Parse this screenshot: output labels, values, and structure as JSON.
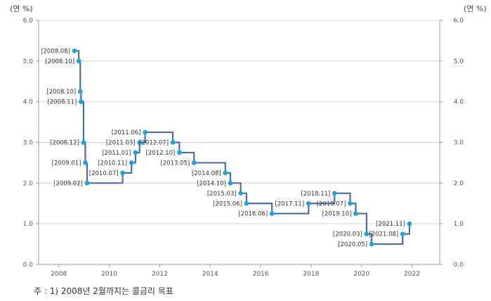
{
  "chart_data": {
    "type": "line",
    "step": true,
    "left_unit": "(연 %)",
    "right_unit": "(연 %)",
    "ylim": [
      0,
      6
    ],
    "y_ticks": [
      "0.0",
      "1.0",
      "2.0",
      "3.0",
      "4.0",
      "5.0",
      "6.0"
    ],
    "xlim": [
      2007.2,
      2023.1
    ],
    "x_ticks": [
      "2008",
      "2010",
      "2012",
      "2014",
      "2016",
      "2018",
      "2020",
      "2022"
    ],
    "grid": "horizontal",
    "line_color": "#4a6fa5",
    "marker_color": "#1aa3dc",
    "points": [
      {
        "label": "[2008.08]",
        "x": 2008.62,
        "y": 5.25,
        "side": "left"
      },
      {
        "label": "[2008.10]",
        "x": 2008.79,
        "y": 5.0,
        "side": "left"
      },
      {
        "label": "[2008.10]",
        "x": 2008.85,
        "y": 4.25,
        "side": "left"
      },
      {
        "label": "[2008.11]",
        "x": 2008.88,
        "y": 4.0,
        "side": "left"
      },
      {
        "label": "[2008.12]",
        "x": 2008.98,
        "y": 3.0,
        "side": "left"
      },
      {
        "label": "[2009.01]",
        "x": 2009.05,
        "y": 2.5,
        "side": "left"
      },
      {
        "label": "[2009.02]",
        "x": 2009.12,
        "y": 2.0,
        "side": "left"
      },
      {
        "label": "[2010.07]",
        "x": 2010.53,
        "y": 2.25,
        "side": "left"
      },
      {
        "label": "[2010.11]",
        "x": 2010.88,
        "y": 2.5,
        "side": "left"
      },
      {
        "label": "[2011.01]",
        "x": 2011.04,
        "y": 2.75,
        "side": "left"
      },
      {
        "label": "[2011.03]",
        "x": 2011.2,
        "y": 3.0,
        "side": "left"
      },
      {
        "label": "[2011.06]",
        "x": 2011.42,
        "y": 3.25,
        "side": "left"
      },
      {
        "label": "[2012.07]",
        "x": 2012.52,
        "y": 3.0,
        "side": "left"
      },
      {
        "label": "[2012.10]",
        "x": 2012.78,
        "y": 2.75,
        "side": "left"
      },
      {
        "label": "[2013.05]",
        "x": 2013.36,
        "y": 2.5,
        "side": "left"
      },
      {
        "label": "[2014.08]",
        "x": 2014.6,
        "y": 2.25,
        "side": "left"
      },
      {
        "label": "[2014.10]",
        "x": 2014.8,
        "y": 2.0,
        "side": "left"
      },
      {
        "label": "[2015.03]",
        "x": 2015.21,
        "y": 1.75,
        "side": "left"
      },
      {
        "label": "[2015.06]",
        "x": 2015.44,
        "y": 1.5,
        "side": "left"
      },
      {
        "label": "[2016.06]",
        "x": 2016.45,
        "y": 1.25,
        "side": "left"
      },
      {
        "label": "[2017.11]",
        "x": 2017.9,
        "y": 1.5,
        "side": "left"
      },
      {
        "label": "[2018.11]",
        "x": 2018.93,
        "y": 1.75,
        "side": "left"
      },
      {
        "label": "[2019.07]",
        "x": 2019.55,
        "y": 1.5,
        "side": "left"
      },
      {
        "label": "[2019.10]",
        "x": 2019.77,
        "y": 1.25,
        "side": "left"
      },
      {
        "label": "[2020.03]",
        "x": 2020.2,
        "y": 0.75,
        "side": "left"
      },
      {
        "label": "[2020.05]",
        "x": 2020.4,
        "y": 0.5,
        "side": "left"
      },
      {
        "label": "[2021.08]",
        "x": 2021.63,
        "y": 0.75,
        "side": "left"
      },
      {
        "label": "[2021.11]",
        "x": 2021.9,
        "y": 1.0,
        "side": "left"
      }
    ]
  },
  "footnote": "주 : 1) 2008년 2월까지는 콜금리 목표"
}
